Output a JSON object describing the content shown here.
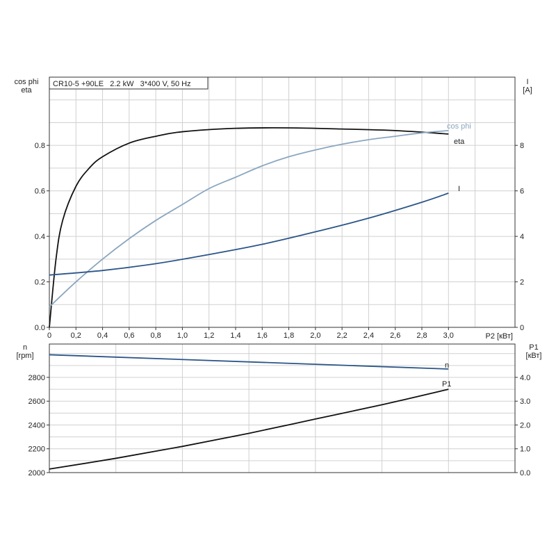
{
  "chart_data": [
    {
      "type": "line",
      "title": "CR10-5 +90LE   2.2 kW   3*400 V, 50 Hz",
      "xlabel": "P2 [кВт]",
      "ylabel": "cos phi\neta",
      "ylabel_lines": [
        "cos phi",
        "eta"
      ],
      "y2label_lines": [
        "I",
        "[A]"
      ],
      "xlim": [
        0,
        3.5
      ],
      "ylim": [
        0,
        1.1
      ],
      "y2lim": [
        0,
        11
      ],
      "xticks": [
        "0",
        "0,2",
        "0,4",
        "0,6",
        "0,8",
        "1,0",
        "1,2",
        "1,4",
        "1,6",
        "1,8",
        "2,0",
        "2,2",
        "2,4",
        "2,6",
        "2,8",
        "3,0"
      ],
      "yticks": [
        "0.0",
        "0.2",
        "0.4",
        "0.6",
        "0.8"
      ],
      "y2ticks": [
        "0",
        "2",
        "4",
        "6",
        "8"
      ],
      "grid": true,
      "series": [
        {
          "name": "eta",
          "axis": "left",
          "color": "#111111",
          "x": [
            0,
            0.05,
            0.1,
            0.2,
            0.3,
            0.4,
            0.6,
            0.8,
            1.0,
            1.4,
            1.8,
            2.2,
            2.6,
            3.0
          ],
          "y": [
            0,
            0.3,
            0.47,
            0.62,
            0.7,
            0.75,
            0.81,
            0.84,
            0.86,
            0.875,
            0.877,
            0.872,
            0.865,
            0.85
          ]
        },
        {
          "name": "cos phi",
          "axis": "left",
          "color": "#8aa6c0",
          "x": [
            0,
            0.2,
            0.4,
            0.6,
            0.8,
            1.0,
            1.2,
            1.4,
            1.6,
            1.8,
            2.0,
            2.2,
            2.4,
            2.6,
            2.8,
            3.0
          ],
          "y": [
            0.09,
            0.2,
            0.3,
            0.39,
            0.47,
            0.54,
            0.61,
            0.66,
            0.71,
            0.75,
            0.78,
            0.805,
            0.825,
            0.84,
            0.855,
            0.865
          ]
        },
        {
          "name": "I",
          "axis": "right",
          "color": "#2a5588",
          "x": [
            0,
            0.4,
            0.8,
            1.2,
            1.6,
            2.0,
            2.4,
            2.8,
            3.0
          ],
          "y": [
            2.3,
            2.5,
            2.8,
            3.2,
            3.65,
            4.2,
            4.8,
            5.5,
            5.9
          ]
        }
      ]
    },
    {
      "type": "line",
      "ylabel_lines": [
        "n",
        "[rpm]"
      ],
      "y2label_lines": [
        "P1",
        "[кВт]"
      ],
      "xlim": [
        0,
        3.5
      ],
      "ylim": [
        2000,
        3080
      ],
      "y2lim": [
        0,
        5.4
      ],
      "yticks": [
        "2000",
        "2200",
        "2400",
        "2600",
        "2800"
      ],
      "y2ticks": [
        "0.0",
        "1.0",
        "2.0",
        "3.0",
        "4.0"
      ],
      "grid": true,
      "series": [
        {
          "name": "n",
          "axis": "left",
          "color": "#2a5588",
          "x": [
            0,
            3.0
          ],
          "y": [
            2990,
            2870
          ]
        },
        {
          "name": "P1",
          "axis": "right",
          "color": "#111111",
          "x": [
            0,
            0.5,
            1.0,
            1.5,
            2.0,
            2.5,
            3.0
          ],
          "y": [
            0.15,
            0.6,
            1.1,
            1.65,
            2.25,
            2.85,
            3.5
          ]
        }
      ]
    }
  ]
}
